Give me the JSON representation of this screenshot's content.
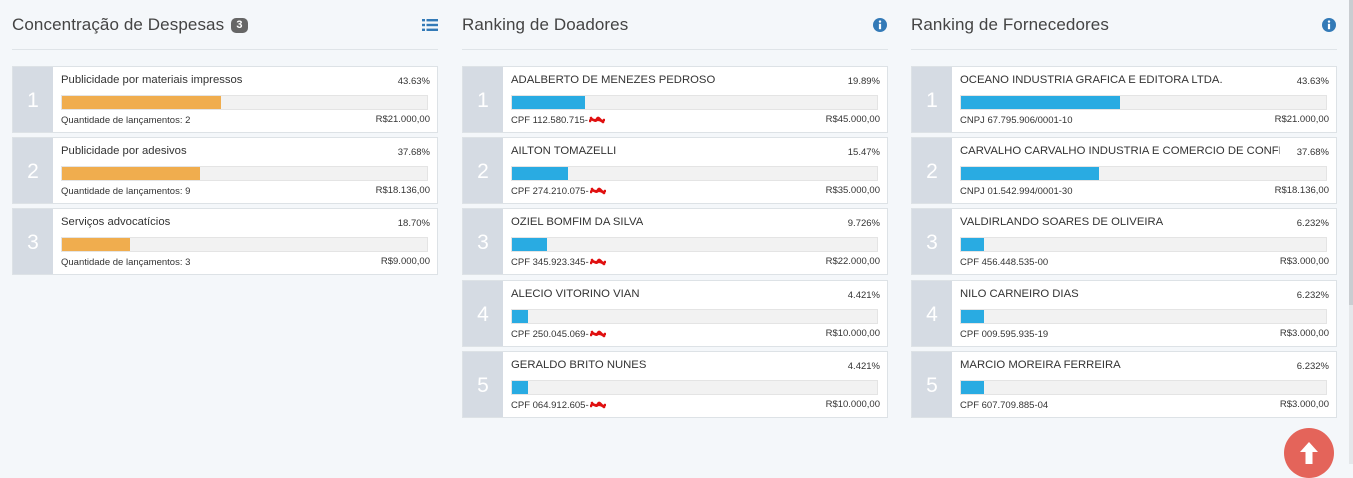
{
  "colors": {
    "orange_bar": "#f0ad4e",
    "blue_bar": "#29abe2",
    "rank_bg": "#d5dbe3",
    "icon_blue": "#337ab7",
    "fab": "#e4645a",
    "redaction": "#e01010"
  },
  "despesas": {
    "title": "Concentração de Despesas",
    "badge": "3",
    "icon": "list-icon",
    "items": [
      {
        "rank": "1",
        "name": "Publicidade por materiais impressos",
        "pct_text": "43.63%",
        "pct": 0.4363,
        "sub": "Quantidade de lançamentos: 2",
        "value": "R$21.000,00"
      },
      {
        "rank": "2",
        "name": "Publicidade por adesivos",
        "pct_text": "37.68%",
        "pct": 0.3768,
        "sub": "Quantidade de lançamentos: 9",
        "value": "R$18.136,00"
      },
      {
        "rank": "3",
        "name": "Serviços advocatícios",
        "pct_text": "18.70%",
        "pct": 0.187,
        "sub": "Quantidade de lançamentos: 3",
        "value": "R$9.000,00"
      }
    ]
  },
  "doadores": {
    "title": "Ranking de Doadores",
    "icon": "info-icon",
    "items": [
      {
        "rank": "1",
        "name": "ADALBERTO DE MENEZES PEDROSO",
        "pct_text": "19.89%",
        "pct": 0.1989,
        "sub": "CPF 112.580.715-",
        "value": "R$45.000,00"
      },
      {
        "rank": "2",
        "name": "AILTON TOMAZELLI",
        "pct_text": "15.47%",
        "pct": 0.1547,
        "sub": "CPF 274.210.075-",
        "value": "R$35.000,00"
      },
      {
        "rank": "3",
        "name": "OZIEL BOMFIM DA SILVA",
        "pct_text": "9.726%",
        "pct": 0.09726,
        "sub": "CPF 345.923.345-",
        "value": "R$22.000,00"
      },
      {
        "rank": "4",
        "name": "ALECIO VITORINO VIAN",
        "pct_text": "4.421%",
        "pct": 0.04421,
        "sub": "CPF 250.045.069-",
        "value": "R$10.000,00"
      },
      {
        "rank": "5",
        "name": "GERALDO BRITO NUNES",
        "pct_text": "4.421%",
        "pct": 0.04421,
        "sub": "CPF 064.912.605-",
        "value": "R$10.000,00"
      }
    ]
  },
  "fornecedores": {
    "title": "Ranking de Fornecedores",
    "icon": "info-icon",
    "items": [
      {
        "rank": "1",
        "name": "OCEANO INDUSTRIA GRAFICA E EDITORA LTDA.",
        "pct_text": "43.63%",
        "pct": 0.4363,
        "sub": "CNPJ 67.795.906/0001-10",
        "value": "R$21.000,00"
      },
      {
        "rank": "2",
        "name": "CARVALHO CARVALHO INDUSTRIA E COMERCIO DE CONFECC...",
        "pct_text": "37.68%",
        "pct": 0.3768,
        "sub": "CNPJ 01.542.994/0001-30",
        "value": "R$18.136,00"
      },
      {
        "rank": "3",
        "name": "VALDIRLANDO SOARES DE OLIVEIRA",
        "pct_text": "6.232%",
        "pct": 0.06232,
        "sub": "CPF 456.448.535-00",
        "value": "R$3.000,00"
      },
      {
        "rank": "4",
        "name": "NILO CARNEIRO DIAS",
        "pct_text": "6.232%",
        "pct": 0.06232,
        "sub": "CPF 009.595.935-19",
        "value": "R$3.000,00"
      },
      {
        "rank": "5",
        "name": "MARCIO MOREIRA FERREIRA",
        "pct_text": "6.232%",
        "pct": 0.06232,
        "sub": "CPF 607.709.885-04",
        "value": "R$3.000,00"
      }
    ]
  },
  "fab_icon": "arrow-up-icon"
}
